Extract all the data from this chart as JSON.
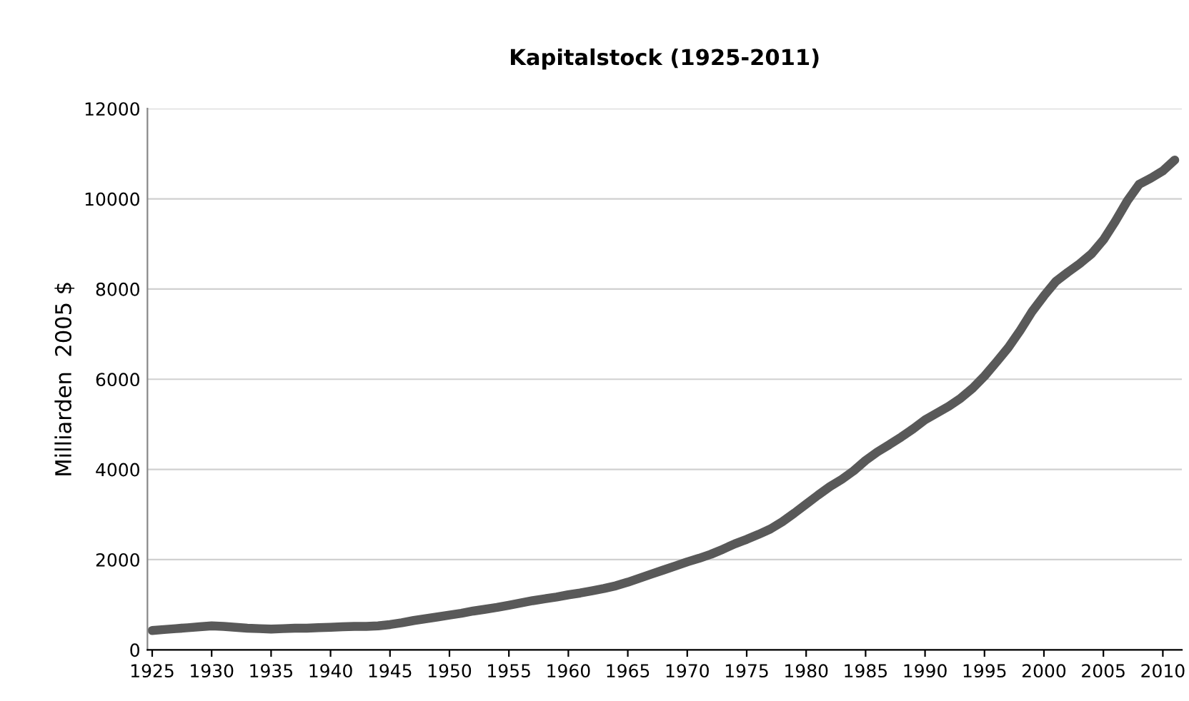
{
  "chart_data": {
    "type": "line",
    "title": "Kapitalstock (1925-2011)",
    "ylabel": "Milliarden  2005 $",
    "x": [
      1925,
      1926,
      1927,
      1928,
      1929,
      1930,
      1931,
      1932,
      1933,
      1934,
      1935,
      1936,
      1937,
      1938,
      1939,
      1940,
      1941,
      1942,
      1943,
      1944,
      1945,
      1946,
      1947,
      1948,
      1949,
      1950,
      1951,
      1952,
      1953,
      1954,
      1955,
      1956,
      1957,
      1958,
      1959,
      1960,
      1961,
      1962,
      1963,
      1964,
      1965,
      1966,
      1967,
      1968,
      1969,
      1970,
      1971,
      1972,
      1973,
      1974,
      1975,
      1976,
      1977,
      1978,
      1979,
      1980,
      1981,
      1982,
      1983,
      1984,
      1985,
      1986,
      1987,
      1988,
      1989,
      1990,
      1991,
      1992,
      1993,
      1994,
      1995,
      1996,
      1997,
      1998,
      1999,
      2000,
      2001,
      2002,
      2003,
      2004,
      2005,
      2006,
      2007,
      2008,
      2009,
      2010,
      2011
    ],
    "series": [
      {
        "color": "#595959",
        "values": [
          430,
          450,
          470,
          490,
          510,
          530,
          520,
          500,
          480,
          470,
          460,
          470,
          480,
          480,
          490,
          500,
          510,
          520,
          520,
          530,
          560,
          600,
          650,
          690,
          730,
          770,
          810,
          860,
          900,
          940,
          990,
          1040,
          1090,
          1130,
          1170,
          1220,
          1260,
          1310,
          1360,
          1420,
          1500,
          1590,
          1680,
          1770,
          1860,
          1950,
          2030,
          2120,
          2230,
          2350,
          2450,
          2560,
          2680,
          2840,
          3030,
          3230,
          3430,
          3620,
          3780,
          3970,
          4200,
          4390,
          4550,
          4720,
          4900,
          5100,
          5250,
          5400,
          5580,
          5800,
          6070,
          6380,
          6700,
          7080,
          7500,
          7850,
          8170,
          8370,
          8560,
          8780,
          9090,
          9500,
          9950,
          10320,
          10460,
          10620,
          10860
        ]
      }
    ],
    "xlim": [
      1924.6,
      2011.6
    ],
    "xticks": [
      1925,
      1930,
      1935,
      1940,
      1945,
      1950,
      1955,
      1960,
      1965,
      1970,
      1975,
      1980,
      1985,
      1990,
      1995,
      2000,
      2005,
      2010
    ],
    "ylim": [
      0,
      12000
    ],
    "yticks": [
      0,
      2000,
      4000,
      6000,
      8000,
      10000,
      12000
    ],
    "grid": "y",
    "marker": "none",
    "line_style": "solid"
  }
}
